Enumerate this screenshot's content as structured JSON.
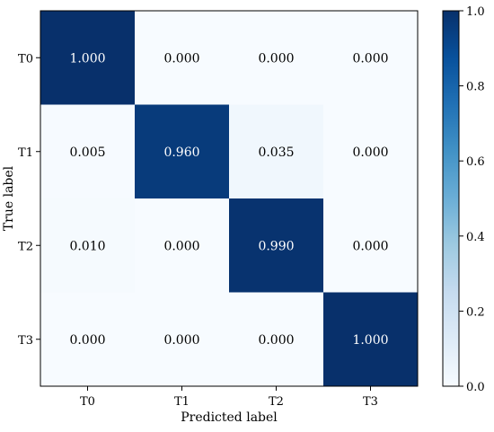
{
  "chart_data": {
    "type": "heatmap",
    "title": "",
    "xlabel": "Predicted label",
    "ylabel": "True label",
    "x_categories": [
      "T0",
      "T1",
      "T2",
      "T3"
    ],
    "y_categories": [
      "T0",
      "T1",
      "T2",
      "T3"
    ],
    "values": [
      [
        1.0,
        0.0,
        0.0,
        0.0
      ],
      [
        0.005,
        0.96,
        0.035,
        0.0
      ],
      [
        0.01,
        0.0,
        0.99,
        0.0
      ],
      [
        0.0,
        0.0,
        0.0,
        1.0
      ]
    ],
    "cell_labels": [
      [
        "1.000",
        "0.000",
        "0.000",
        "0.000"
      ],
      [
        "0.005",
        "0.960",
        "0.035",
        "0.000"
      ],
      [
        "0.010",
        "0.000",
        "0.990",
        "0.000"
      ],
      [
        "0.000",
        "0.000",
        "0.000",
        "1.000"
      ]
    ],
    "colormap": "Blues",
    "colorbar": {
      "range": [
        0.0,
        1.0
      ],
      "ticks": [
        0.0,
        0.2,
        0.4,
        0.6,
        0.8,
        1.0
      ],
      "tick_labels": [
        "0.0",
        "0.2",
        "0.4",
        "0.6",
        "0.8",
        "1.0"
      ]
    },
    "colors": {
      "low": "#f7fbff",
      "high": "#08306b",
      "text_dark": "#000000",
      "text_light": "#ffffff"
    }
  }
}
